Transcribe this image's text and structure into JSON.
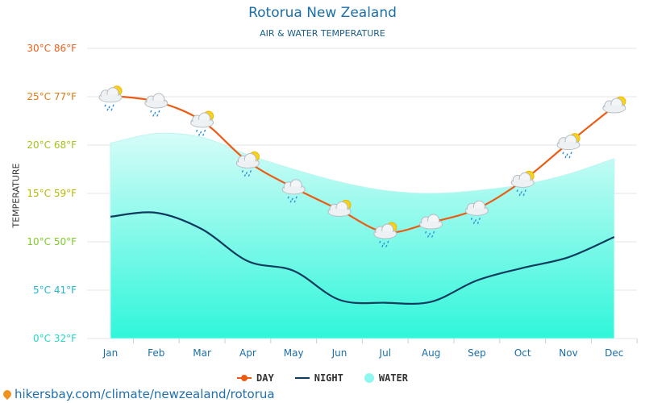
{
  "header": {
    "title": "Rotorua New Zealand",
    "subtitle": "AIR & WATER TEMPERATURE",
    "ylabel": "TEMPERATURE"
  },
  "legend": {
    "day": "DAY",
    "night": "NIGHT",
    "water": "WATER"
  },
  "source": "hikersbay.com/climate/newzealand/rotorua",
  "colors": {
    "day": "#ec5b13",
    "night": "#0d3b5e",
    "water_top": "#c9fbf6",
    "water_bottom": "#2cf7d8",
    "grid": "#e6e6e6"
  },
  "chart_data": {
    "type": "line",
    "title": "Rotorua New Zealand",
    "subtitle": "AIR & WATER TEMPERATURE",
    "ylabel": "TEMPERATURE",
    "ylim": [
      0,
      30
    ],
    "grid": true,
    "legend_position": "bottom",
    "categories": [
      "Jan",
      "Feb",
      "Mar",
      "Apr",
      "May",
      "Jun",
      "Jul",
      "Aug",
      "Sep",
      "Oct",
      "Nov",
      "Dec"
    ],
    "y_ticks": [
      {
        "value": 0,
        "label": "0°C 32°F",
        "color": "#21d6c4"
      },
      {
        "value": 5,
        "label": "5°C 41°F",
        "color": "#1fb7cf"
      },
      {
        "value": 10,
        "label": "10°C 50°F",
        "color": "#7ccc2a"
      },
      {
        "value": 15,
        "label": "15°C 59°F",
        "color": "#b8b800"
      },
      {
        "value": 20,
        "label": "20°C 68°F",
        "color": "#a3c21a"
      },
      {
        "value": 25,
        "label": "25°C 77°F",
        "color": "#e07a12"
      },
      {
        "value": 30,
        "label": "30°C 86°F",
        "color": "#e8601c"
      }
    ],
    "series": [
      {
        "name": "DAY",
        "values": [
          25.1,
          24.5,
          22.5,
          18.3,
          15.6,
          13.3,
          11.0,
          12.0,
          13.4,
          16.3,
          20.2,
          24.0
        ]
      },
      {
        "name": "NIGHT",
        "values": [
          12.6,
          13.0,
          11.3,
          8.0,
          7.0,
          4.0,
          3.7,
          3.8,
          6.0,
          7.3,
          8.4,
          10.5
        ]
      },
      {
        "name": "WATER",
        "values": [
          20.2,
          21.2,
          20.8,
          19.0,
          17.5,
          16.2,
          15.3,
          15.0,
          15.3,
          15.9,
          17.0,
          18.6
        ]
      }
    ],
    "weather_icons": [
      "partly-cloudy-rain-icon",
      "cloud-rain-icon",
      "partly-cloudy-rain-icon",
      "partly-cloudy-rain-icon",
      "cloud-rain-icon",
      "partly-cloudy-icon",
      "partly-cloudy-rain-icon",
      "cloud-rain-icon",
      "cloud-rain-icon",
      "partly-cloudy-rain-icon",
      "partly-cloudy-rain-icon",
      "partly-cloudy-icon"
    ]
  }
}
